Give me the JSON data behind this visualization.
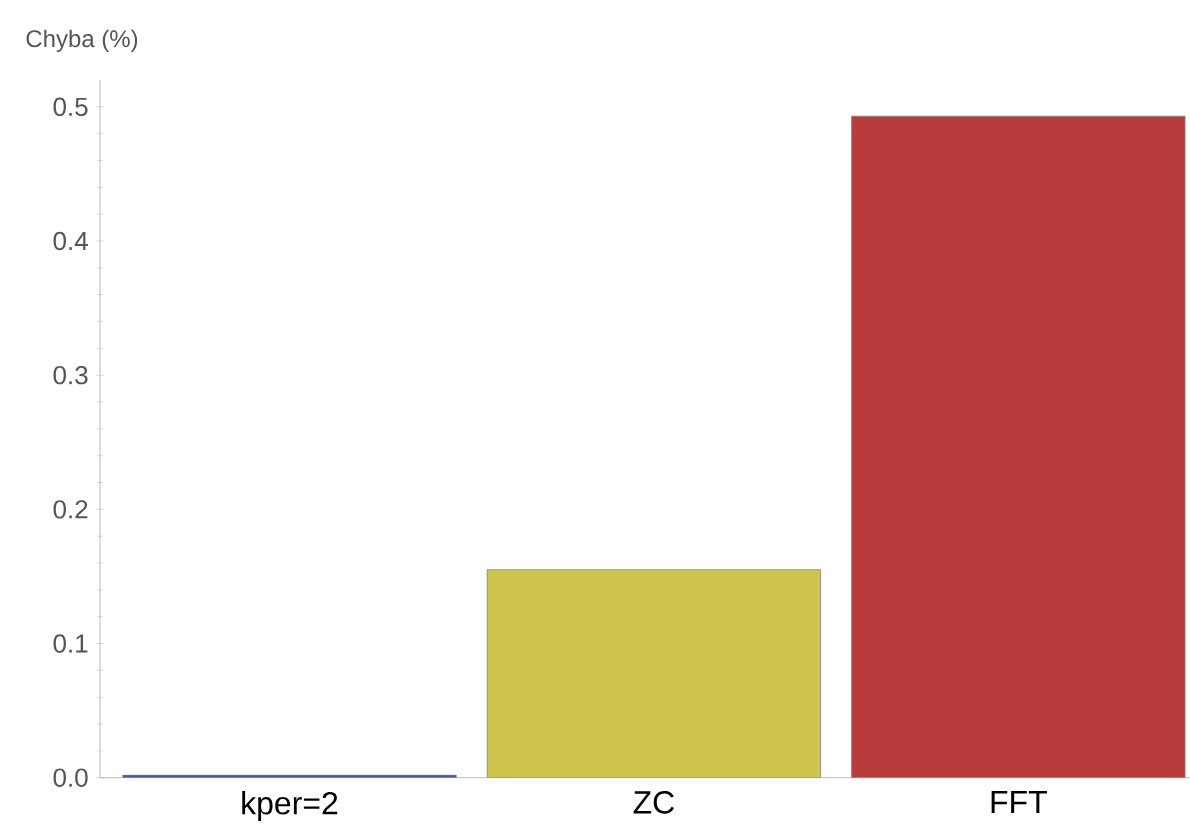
{
  "chart_data": {
    "type": "bar",
    "ylabel": "Chyba (%)",
    "categories": [
      "kper=2",
      "ZC",
      "FFT"
    ],
    "values": [
      0.002,
      0.155,
      0.493
    ],
    "colors": [
      "#3d5a9e",
      "#cfc44e",
      "#b83c3c"
    ],
    "ylim": [
      0,
      0.52
    ],
    "yticks": [
      {
        "value": 0,
        "label": "0.0"
      },
      0.1,
      0.2,
      0.3,
      0.4,
      0.5
    ],
    "grid": false
  }
}
